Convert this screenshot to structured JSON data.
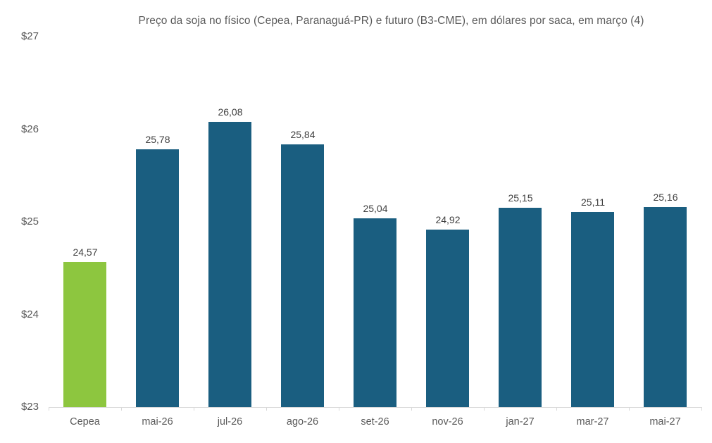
{
  "chart_data": {
    "type": "bar",
    "title": "Preço da soja no físico (Cepea, Paranaguá-PR) e futuro (B3-CME), em dólares por saca, em março (4)",
    "categories": [
      "Cepea",
      "mai-26",
      "jul-26",
      "ago-26",
      "set-26",
      "nov-26",
      "jan-27",
      "mar-27",
      "mai-27"
    ],
    "values": [
      24.57,
      25.78,
      26.08,
      25.84,
      25.04,
      24.92,
      25.15,
      25.11,
      25.16
    ],
    "value_labels": [
      "24,57",
      "25,78",
      "26,08",
      "25,84",
      "25,04",
      "24,92",
      "25,15",
      "25,11",
      "25,16"
    ],
    "bar_colors": [
      "#8DC63F",
      "#1A5E80",
      "#1A5E80",
      "#1A5E80",
      "#1A5E80",
      "#1A5E80",
      "#1A5E80",
      "#1A5E80",
      "#1A5E80"
    ],
    "xlabel": "",
    "ylabel": "",
    "ylim": [
      23,
      27
    ],
    "yticks": [
      23,
      24,
      25,
      26,
      27
    ],
    "ytick_labels": [
      "$23",
      "$24",
      "$25",
      "$26",
      "$27"
    ],
    "grid": false,
    "legend": false,
    "colors": {
      "cepea_bar": "#8DC63F",
      "futures_bar": "#1A5E80",
      "axis_line": "#D9D9D9",
      "title_text": "#595959",
      "axis_label_text": "#595959",
      "data_label_text": "#404040"
    }
  }
}
